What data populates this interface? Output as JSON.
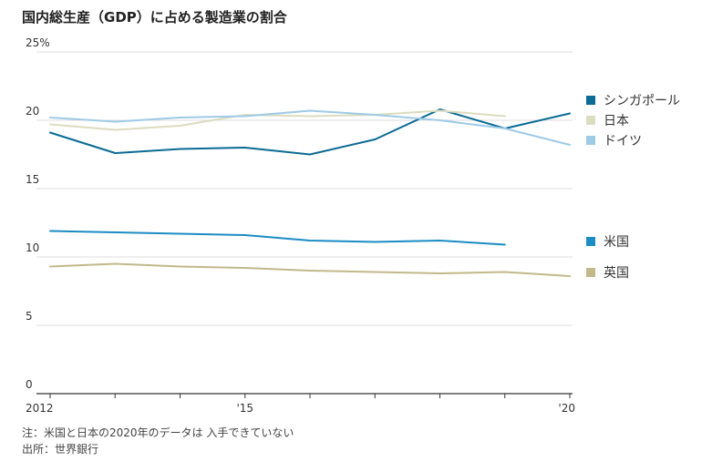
{
  "chart_data": {
    "type": "line",
    "title": "国内総生産（GDP）に占める製造業の割合",
    "x": [
      2012,
      2013,
      2014,
      2015,
      2016,
      2017,
      2018,
      2019,
      2020
    ],
    "xticks": [
      {
        "value": 2012,
        "label": "2012"
      },
      {
        "value": 2015,
        "label": "'15"
      },
      {
        "value": 2020,
        "label": "'20"
      }
    ],
    "ylim": [
      0,
      25
    ],
    "yticks": [
      {
        "value": 0,
        "label": "0"
      },
      {
        "value": 5,
        "label": "5"
      },
      {
        "value": 10,
        "label": "10"
      },
      {
        "value": 15,
        "label": "15"
      },
      {
        "value": 20,
        "label": "20"
      },
      {
        "value": 25,
        "label": "25%"
      }
    ],
    "grid": "horizontal",
    "legend": "right, labels beside each group",
    "series": [
      {
        "name": "シンガポール",
        "color": "#0a6b94",
        "values": [
          19.1,
          17.6,
          17.9,
          18.0,
          17.5,
          18.6,
          20.8,
          19.4,
          20.5
        ]
      },
      {
        "name": "日本",
        "color": "#dcdcbf",
        "values": [
          19.7,
          19.3,
          19.6,
          20.4,
          20.3,
          20.4,
          20.7,
          20.3,
          null
        ]
      },
      {
        "name": "ドイツ",
        "color": "#9ecae6",
        "values": [
          20.2,
          19.9,
          20.2,
          20.3,
          20.7,
          20.4,
          20.0,
          19.4,
          18.2
        ]
      },
      {
        "name": "米国",
        "color": "#1b8cc4",
        "values": [
          11.9,
          11.8,
          11.7,
          11.6,
          11.2,
          11.1,
          11.2,
          10.9,
          null
        ]
      },
      {
        "name": "英国",
        "color": "#c1b98a",
        "values": [
          9.3,
          9.5,
          9.3,
          9.2,
          9.0,
          8.9,
          8.8,
          8.9,
          8.6
        ]
      }
    ]
  },
  "notes": {
    "note": "注：米国と日本の2020年のデータは 入手できていない",
    "source": "出所：世界銀行"
  }
}
